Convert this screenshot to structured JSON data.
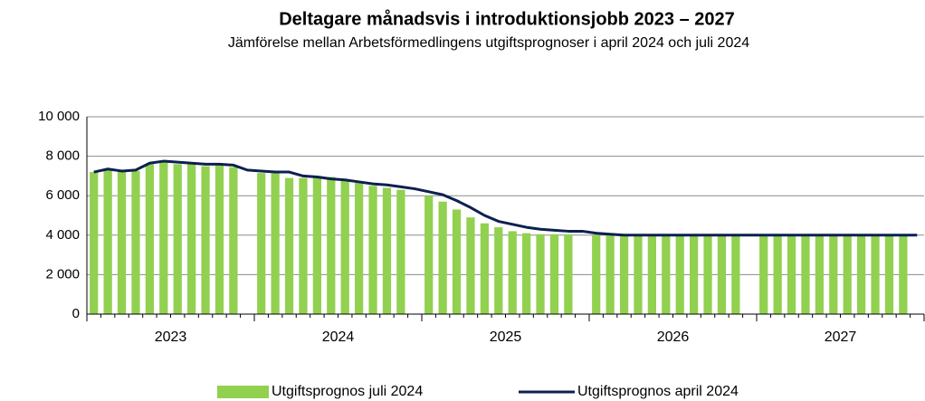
{
  "chart_data": {
    "type": "bar-line",
    "title": "Deltagare månadsvis i introduktionsjobb 2023 – 2027",
    "subtitle": "Jämförelse mellan Arbetsförmedlingens utgiftsprognoser i april 2024 och juli 2024",
    "x_groups": [
      "2023",
      "2024",
      "2025",
      "2026",
      "2027"
    ],
    "categories": [
      null,
      null,
      null,
      null,
      null,
      null,
      null,
      null,
      null,
      null,
      null,
      null,
      null,
      null,
      null,
      null,
      null,
      null,
      null,
      null,
      null,
      null,
      null,
      null,
      null,
      null,
      null,
      null,
      null,
      null,
      null,
      null,
      null,
      null,
      null,
      null,
      null,
      null,
      null,
      null,
      null,
      null,
      null,
      null,
      null,
      null,
      null,
      null,
      null,
      null,
      null,
      null,
      null,
      null,
      null,
      null,
      null,
      null,
      null,
      null
    ],
    "series": [
      {
        "name": "Utgiftsprognos juli 2024",
        "type": "bar",
        "color": "#92d050",
        "values": [
          7200,
          7300,
          7250,
          7250,
          7600,
          7700,
          7600,
          7600,
          7500,
          7550,
          7450,
          null,
          7150,
          7200,
          6900,
          6900,
          7000,
          6950,
          6800,
          6650,
          6500,
          6400,
          6300,
          null,
          6000,
          5700,
          5300,
          4900,
          4600,
          4400,
          4200,
          4100,
          4050,
          4050,
          4050,
          null,
          4000,
          4000,
          4000,
          4000,
          4000,
          4000,
          4000,
          4000,
          4000,
          4000,
          4000,
          null,
          4000,
          4000,
          4000,
          4000,
          4000,
          4000,
          4000,
          4000,
          4000,
          4000,
          4000,
          null
        ]
      },
      {
        "name": "Utgiftsprognos april 2024",
        "type": "line",
        "color": "#0c2050",
        "values": [
          7200,
          7350,
          7250,
          7300,
          7650,
          7750,
          7700,
          7650,
          7600,
          7600,
          7550,
          7300,
          7250,
          7200,
          7200,
          7000,
          6950,
          6850,
          6800,
          6700,
          6600,
          6550,
          6450,
          6350,
          6200,
          6050,
          5750,
          5400,
          5000,
          4700,
          4550,
          4400,
          4300,
          4250,
          4200,
          4200,
          4100,
          4050,
          4000,
          4000,
          4000,
          4000,
          4000,
          4000,
          4000,
          4000,
          4000,
          4000,
          4000,
          4000,
          4000,
          4000,
          4000,
          4000,
          4000,
          4000,
          4000,
          4000,
          4000,
          4000
        ]
      }
    ],
    "ylim": [
      0,
      10000
    ],
    "yticks": [
      0,
      {
        "value": 2000,
        "label": "2 000"
      },
      {
        "value": 4000,
        "label": "4 000"
      },
      {
        "value": 6000,
        "label": "6 000"
      },
      {
        "value": 8000,
        "label": "8 000"
      },
      {
        "value": 10000,
        "label": "10 000"
      }
    ],
    "grid": true,
    "legend": "bottom"
  }
}
